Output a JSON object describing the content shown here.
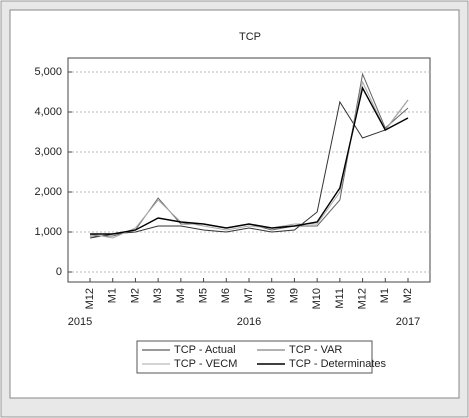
{
  "chart_data": {
    "type": "line",
    "title": "TCP",
    "categories": [
      "M12",
      "M1",
      "M2",
      "M3",
      "M4",
      "M5",
      "M6",
      "M7",
      "M8",
      "M9",
      "M10",
      "M11",
      "M12",
      "M1",
      "M2"
    ],
    "year_labels": [
      "2015",
      "2016",
      "2017"
    ],
    "series": [
      {
        "name": "TCP - Actual",
        "color": "#333333",
        "values": [
          850,
          950,
          1000,
          1150,
          1150,
          1050,
          1000,
          1100,
          1000,
          1050,
          1500,
          4250,
          3350,
          3550,
          4300
        ]
      },
      {
        "name": "TCP - VAR",
        "color": "#666666",
        "values": [
          900,
          900,
          1050,
          1850,
          1200,
          1200,
          1100,
          1200,
          1050,
          1150,
          1150,
          1800,
          4950,
          3600,
          4100
        ]
      },
      {
        "name": "TCP - VECM",
        "color": "#aaaaaa",
        "values": [
          950,
          850,
          1100,
          1800,
          1250,
          1150,
          1050,
          1150,
          1100,
          1200,
          1200,
          2000,
          4750,
          3550,
          4300
        ]
      },
      {
        "name": "TCP -  Determinates",
        "color": "#000000",
        "values": [
          950,
          950,
          1050,
          1350,
          1250,
          1200,
          1100,
          1200,
          1100,
          1150,
          1250,
          2100,
          4600,
          3550,
          3850
        ]
      }
    ],
    "ylim": [
      -250,
      5350
    ],
    "yticks": [
      0,
      {
        "value": 1000,
        "label": "1,000"
      },
      {
        "value": 2000,
        "label": "2,000"
      },
      {
        "value": 3000,
        "label": "3,000"
      },
      {
        "value": 4000,
        "label": "4,000"
      },
      {
        "value": 5000,
        "label": "5,000"
      }
    ],
    "grid": true,
    "legend": "bottom"
  }
}
